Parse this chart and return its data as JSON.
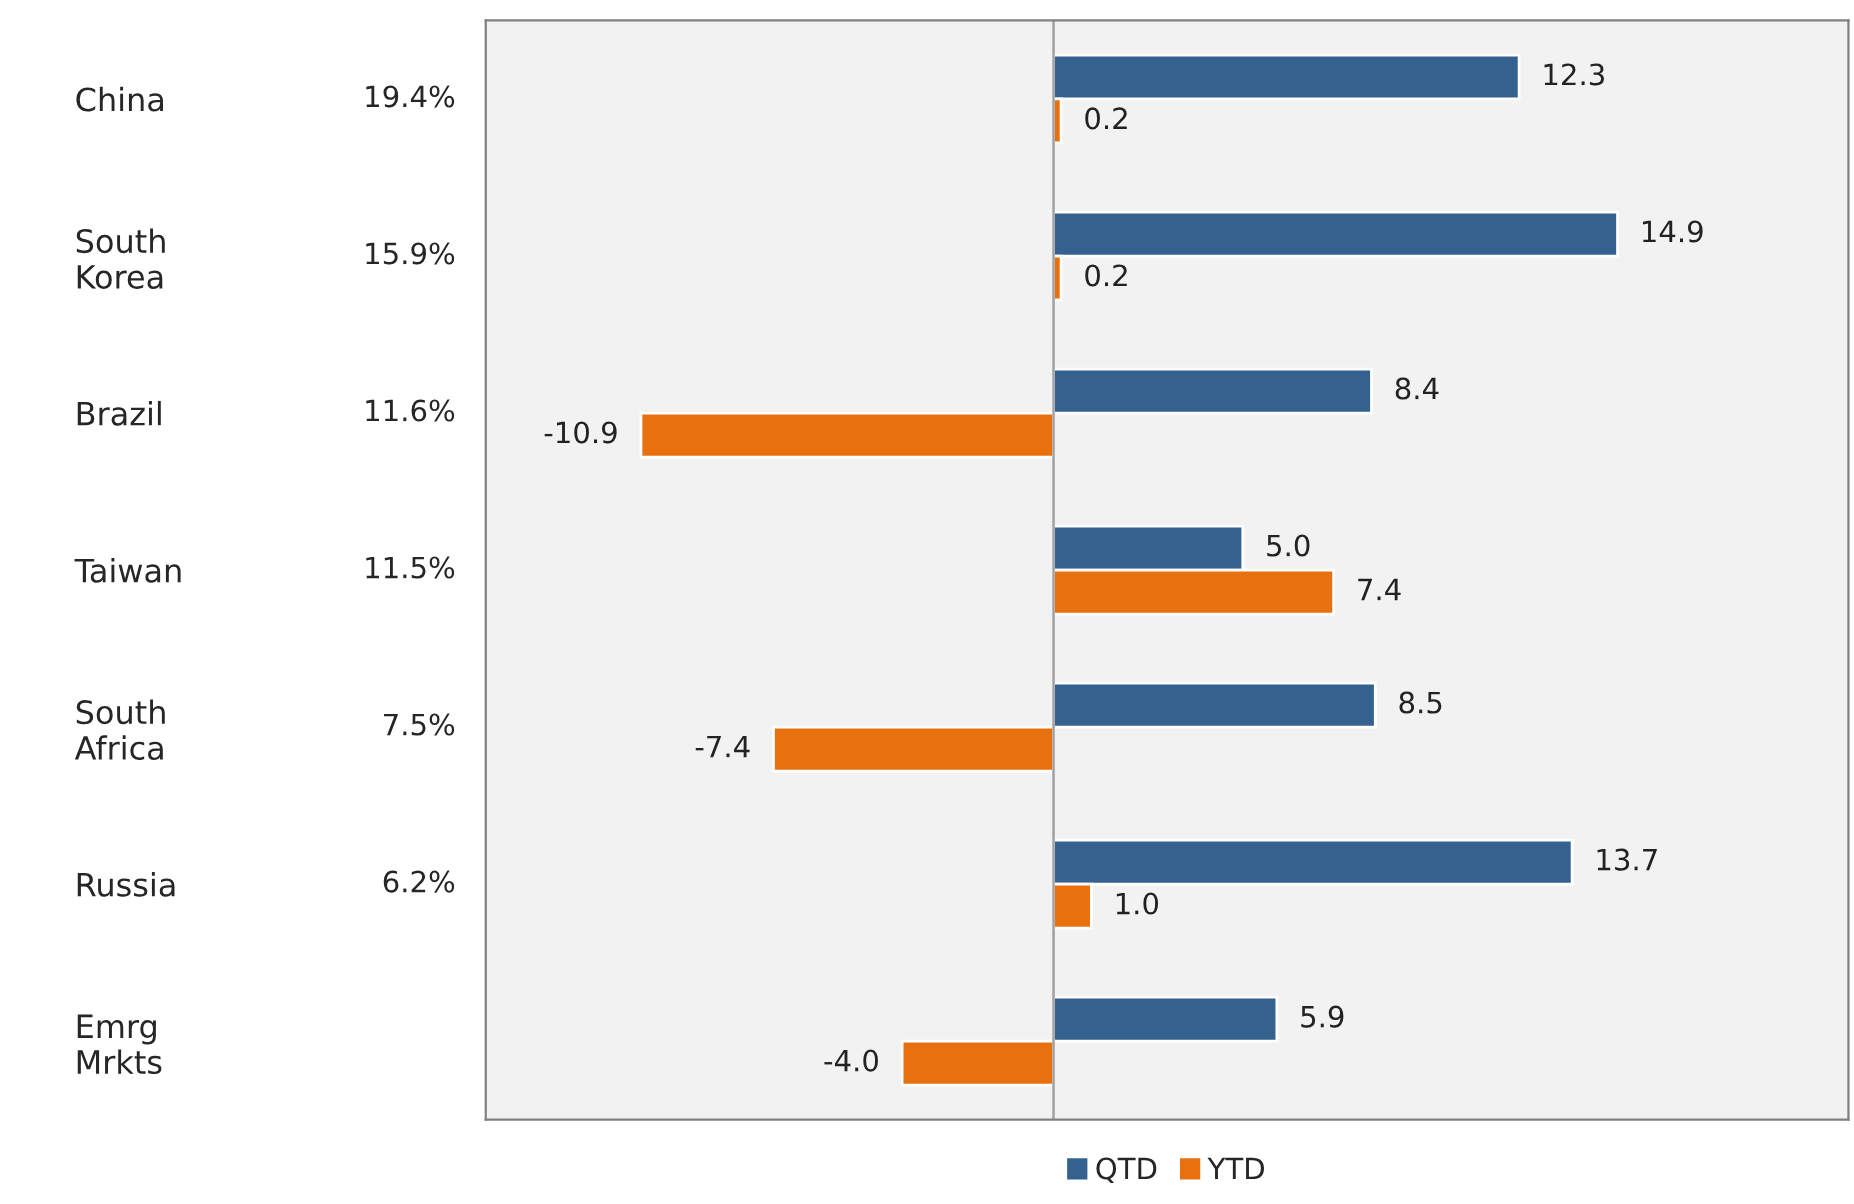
{
  "chart_data": {
    "type": "bar",
    "orientation": "horizontal",
    "categories": [
      "China",
      "South\nKorea",
      "Brazil",
      "Taiwan",
      "South\nAfrica",
      "Russia",
      "Emrg\nMrkts"
    ],
    "series": [
      {
        "name": "QTD",
        "color": "#35618f",
        "values": [
          12.3,
          14.9,
          8.4,
          5,
          8.5,
          13.7,
          5.9
        ],
        "value_labels": [
          "12.3",
          "14.9",
          "8.4",
          "5.0",
          "8.5",
          "13.7",
          "5.9"
        ]
      },
      {
        "name": "YTD",
        "color": "#e8700f",
        "values": [
          0.2,
          0.2,
          -10.9,
          7.4,
          -7.4,
          1,
          -4
        ],
        "value_labels": [
          "0.2",
          "0.2",
          "-10.9",
          "7.4",
          "-7.4",
          "1.0",
          "-4.0"
        ]
      }
    ],
    "annotations": [
      "19.4%",
      "15.9%",
      "11.6%",
      "11.5%",
      "7.5%",
      "6.2%"
    ],
    "xlim": [
      -15,
      21
    ],
    "tick_labels": "y",
    "grid": false,
    "legend": "bottom"
  }
}
